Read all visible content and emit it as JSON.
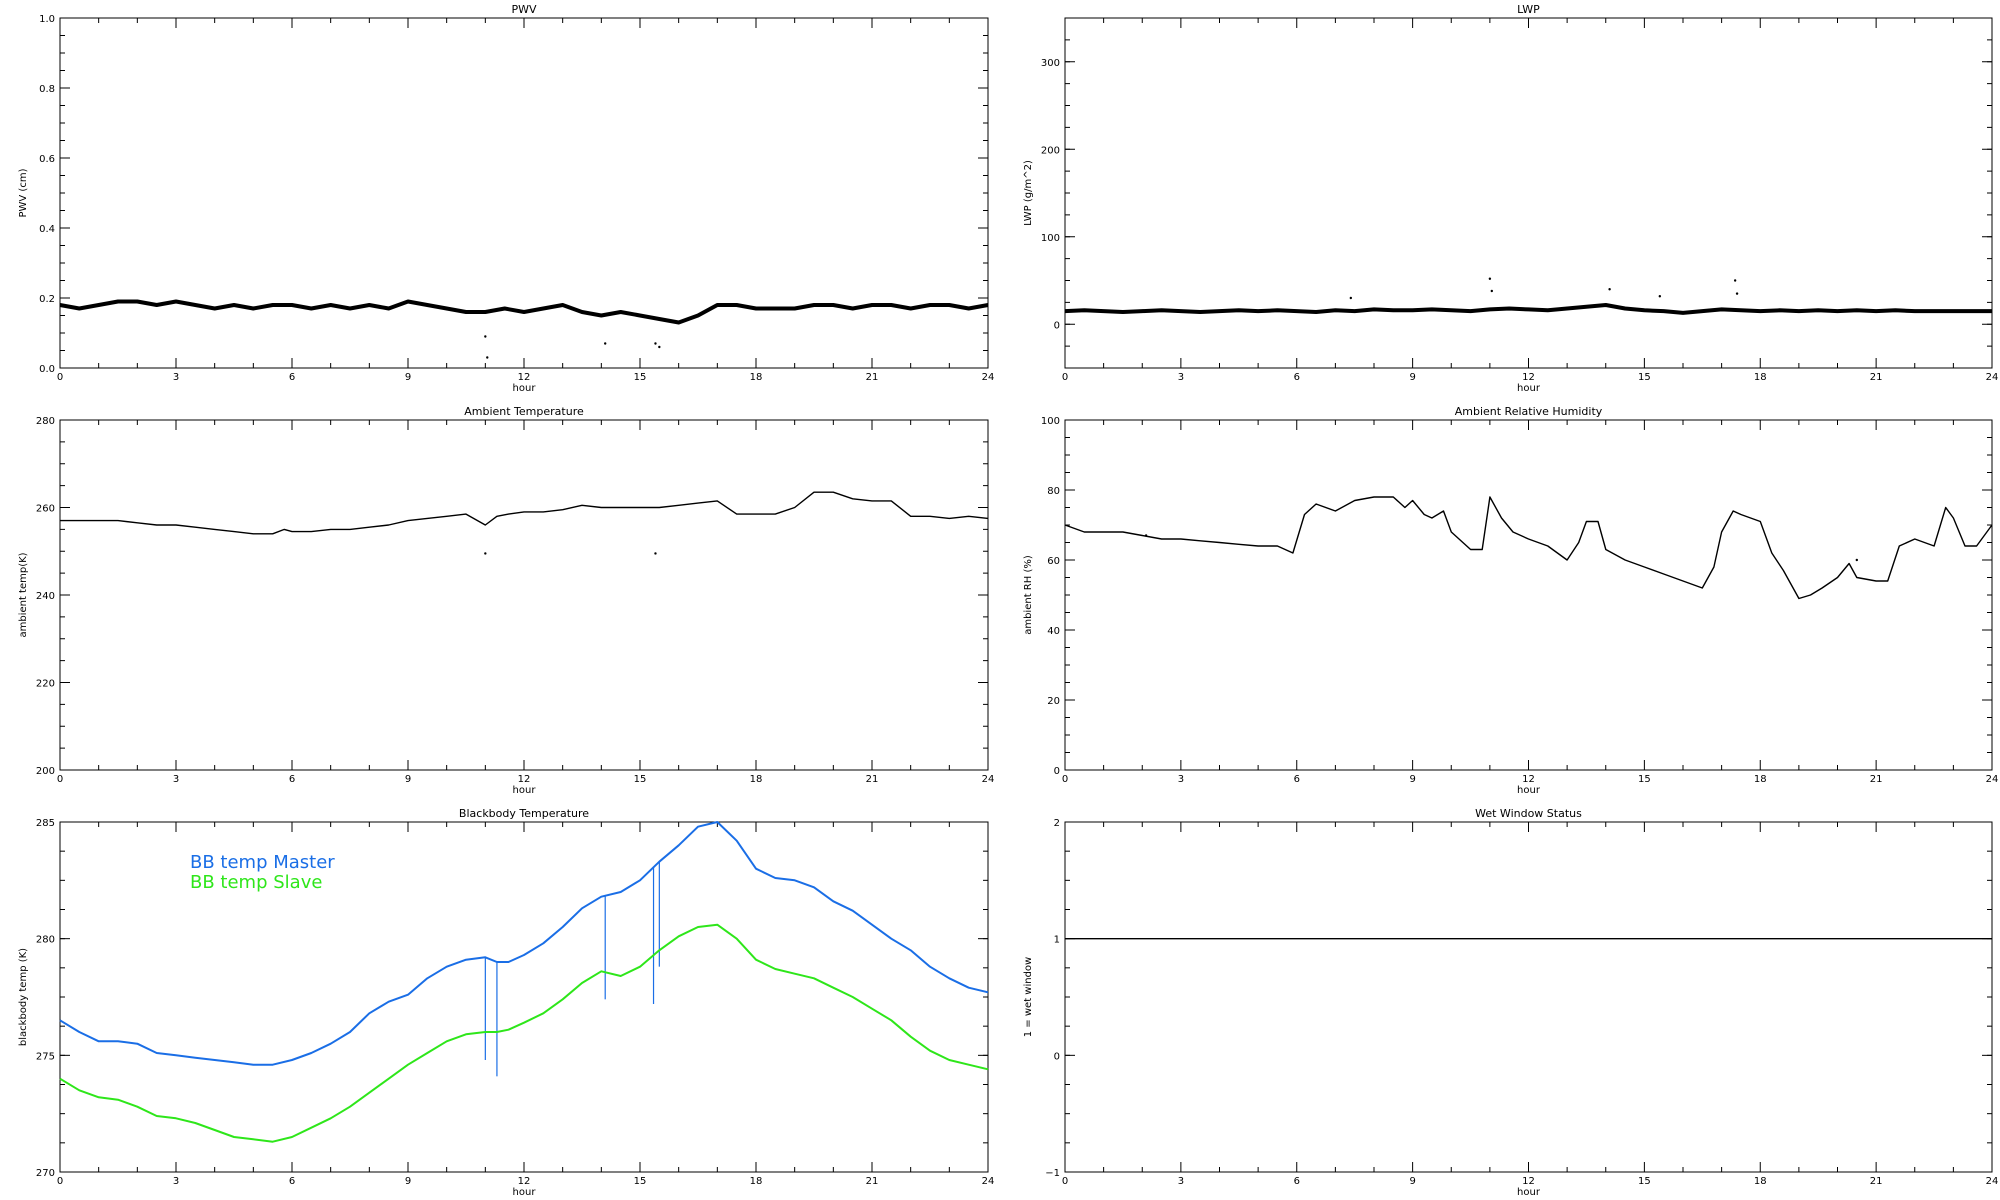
{
  "chart_data": [
    {
      "type": "scatter",
      "title": "PWV",
      "xlabel": "hour",
      "ylabel": "PWV (cm)",
      "xlim": [
        0,
        24
      ],
      "ylim": [
        0,
        1.0
      ],
      "xticks": [
        0,
        3,
        6,
        9,
        12,
        15,
        18,
        21,
        24
      ],
      "yticks": [
        0.0,
        0.2,
        0.4,
        0.6,
        0.8,
        1.0
      ],
      "ytick_labels": [
        "0.0",
        "0.2",
        "0.4",
        "0.6",
        "0.8",
        "1.0"
      ],
      "grid": false,
      "series": [
        {
          "color": "#000000",
          "x": [
            0,
            0.5,
            1,
            1.5,
            2,
            2.5,
            3,
            3.5,
            4,
            4.5,
            5,
            5.5,
            6,
            6.5,
            7,
            7.5,
            8,
            8.5,
            9,
            9.5,
            10,
            10.5,
            11,
            11.5,
            12,
            12.5,
            13,
            13.5,
            14,
            14.5,
            15,
            15.5,
            16,
            16.5,
            17,
            17.5,
            18,
            18.5,
            19,
            19.5,
            20,
            20.5,
            21,
            21.5,
            22,
            22.5,
            23,
            23.5,
            24
          ],
          "y": [
            0.18,
            0.17,
            0.18,
            0.19,
            0.19,
            0.18,
            0.19,
            0.18,
            0.17,
            0.18,
            0.17,
            0.18,
            0.18,
            0.17,
            0.18,
            0.17,
            0.18,
            0.17,
            0.19,
            0.18,
            0.17,
            0.16,
            0.16,
            0.17,
            0.16,
            0.17,
            0.18,
            0.16,
            0.15,
            0.16,
            0.15,
            0.14,
            0.13,
            0.15,
            0.18,
            0.18,
            0.17,
            0.17,
            0.17,
            0.18,
            0.18,
            0.17,
            0.18,
            0.18,
            0.17,
            0.18,
            0.18,
            0.17,
            0.18
          ]
        }
      ],
      "outliers": {
        "x": [
          11.0,
          11.05,
          14.1,
          15.4,
          15.5
        ],
        "y": [
          0.09,
          0.03,
          0.07,
          0.07,
          0.06
        ]
      }
    },
    {
      "type": "scatter",
      "title": "LWP",
      "xlabel": "hour",
      "ylabel": "LWP (g/m^2)",
      "xlim": [
        0,
        24
      ],
      "ylim": [
        -50,
        350
      ],
      "xticks": [
        0,
        3,
        6,
        9,
        12,
        15,
        18,
        21,
        24
      ],
      "yticks": [
        0,
        100,
        200,
        300
      ],
      "ytick_labels": [
        "0",
        "100",
        "200",
        "300"
      ],
      "grid": false,
      "series": [
        {
          "color": "#000000",
          "x": [
            0,
            0.5,
            1,
            1.5,
            2,
            2.5,
            3,
            3.5,
            4,
            4.5,
            5,
            5.5,
            6,
            6.5,
            7,
            7.5,
            8,
            8.5,
            9,
            9.5,
            10,
            10.5,
            11,
            11.5,
            12,
            12.5,
            13,
            13.5,
            14,
            14.5,
            15,
            15.5,
            16,
            16.5,
            17,
            17.5,
            18,
            18.5,
            19,
            19.5,
            20,
            20.5,
            21,
            21.5,
            22,
            22.5,
            23,
            23.5,
            24
          ],
          "y": [
            15,
            16,
            15,
            14,
            15,
            16,
            15,
            14,
            15,
            16,
            15,
            16,
            15,
            14,
            16,
            15,
            17,
            16,
            16,
            17,
            16,
            15,
            17,
            18,
            17,
            16,
            18,
            20,
            22,
            18,
            16,
            15,
            13,
            15,
            17,
            16,
            15,
            16,
            15,
            16,
            15,
            16,
            15,
            16,
            15,
            15,
            15,
            15,
            15
          ]
        }
      ],
      "outliers": {
        "x": [
          7.4,
          11.0,
          11.05,
          14.1,
          15.4,
          17.35,
          17.4
        ],
        "y": [
          30,
          52,
          38,
          40,
          32,
          50,
          35
        ]
      }
    },
    {
      "type": "line",
      "title": "Ambient Temperature",
      "xlabel": "hour",
      "ylabel": "ambient temp(K)",
      "xlim": [
        0,
        24
      ],
      "ylim": [
        200,
        280
      ],
      "xticks": [
        0,
        3,
        6,
        9,
        12,
        15,
        18,
        21,
        24
      ],
      "yticks": [
        200,
        220,
        240,
        260,
        280
      ],
      "ytick_labels": [
        "200",
        "220",
        "240",
        "260",
        "280"
      ],
      "grid": false,
      "series": [
        {
          "color": "#000000",
          "x": [
            0,
            0.5,
            1,
            1.5,
            2,
            2.5,
            3,
            3.5,
            4,
            4.5,
            5,
            5.5,
            5.8,
            6,
            6.5,
            7,
            7.5,
            8,
            8.5,
            9,
            9.5,
            10,
            10.5,
            11,
            11.3,
            11.6,
            12,
            12.5,
            13,
            13.5,
            14,
            14.5,
            15,
            15.5,
            16,
            16.5,
            17,
            17.5,
            18,
            18.5,
            19,
            19.5,
            20,
            20.5,
            21,
            21.5,
            22,
            22.5,
            23,
            23.5,
            24
          ],
          "y": [
            257,
            257,
            257,
            257,
            256.5,
            256,
            256,
            255.5,
            255,
            254.5,
            254,
            254,
            255,
            254.5,
            254.5,
            255,
            255,
            255.5,
            256,
            257,
            257.5,
            258,
            258.5,
            256,
            258,
            258.5,
            259,
            259,
            259.5,
            260.5,
            260,
            260,
            260,
            260,
            260.5,
            261,
            261.5,
            258.5,
            258.5,
            258.5,
            260,
            263.5,
            263.5,
            262,
            261.5,
            261.5,
            258,
            258,
            257.5,
            258,
            257.5
          ]
        }
      ],
      "outliers": {
        "x": [
          11.0,
          15.4
        ],
        "y": [
          249.5,
          249.5
        ]
      }
    },
    {
      "type": "line",
      "title": "Ambient Relative Humidity",
      "xlabel": "hour",
      "ylabel": "ambient RH (%)",
      "xlim": [
        0,
        24
      ],
      "ylim": [
        0,
        100
      ],
      "xticks": [
        0,
        3,
        6,
        9,
        12,
        15,
        18,
        21,
        24
      ],
      "yticks": [
        0,
        20,
        40,
        60,
        80,
        100
      ],
      "ytick_labels": [
        "0",
        "20",
        "40",
        "60",
        "80",
        "100"
      ],
      "grid": false,
      "series": [
        {
          "color": "#000000",
          "x": [
            0,
            0.5,
            1,
            1.5,
            2,
            2.5,
            3,
            3.5,
            4,
            4.5,
            5,
            5.5,
            5.9,
            6.2,
            6.5,
            7,
            7.5,
            8,
            8.5,
            8.8,
            9,
            9.3,
            9.5,
            9.8,
            10,
            10.5,
            10.8,
            11,
            11.3,
            11.6,
            12,
            12.5,
            13,
            13.3,
            13.5,
            13.8,
            14,
            14.5,
            15,
            15.5,
            16,
            16.5,
            16.8,
            17,
            17.3,
            17.5,
            18,
            18.3,
            18.6,
            19,
            19.3,
            19.6,
            20,
            20.3,
            20.5,
            21,
            21.3,
            21.6,
            22,
            22.5,
            22.8,
            23,
            23.3,
            23.6,
            24
          ],
          "y": [
            70,
            68,
            68,
            68,
            67,
            66,
            66,
            65.5,
            65,
            64.5,
            64,
            64,
            62,
            73,
            76,
            74,
            77,
            78,
            78,
            75,
            77,
            73,
            72,
            74,
            68,
            63,
            63,
            78,
            72,
            68,
            66,
            64,
            60,
            65,
            71,
            71,
            63,
            60,
            58,
            56,
            54,
            52,
            58,
            68,
            74,
            73,
            71,
            62,
            57,
            49,
            50,
            52,
            55,
            59,
            55,
            54,
            54,
            64,
            66,
            64,
            75,
            72,
            64,
            64,
            70
          ]
        }
      ],
      "outliers": {
        "x": [
          2.1,
          20.5
        ],
        "y": [
          67,
          60
        ]
      }
    },
    {
      "type": "line",
      "title": "Blackbody Temperature",
      "xlabel": "hour",
      "ylabel": "blackbody temp (K)",
      "xlim": [
        0,
        24
      ],
      "ylim": [
        270,
        285
      ],
      "xticks": [
        0,
        3,
        6,
        9,
        12,
        15,
        18,
        21,
        24
      ],
      "yticks": [
        270,
        275,
        280,
        285
      ],
      "ytick_labels": [
        "270",
        "275",
        "280",
        "285"
      ],
      "grid": false,
      "legend": [
        "BB temp Master",
        "BB temp Slave"
      ],
      "series": [
        {
          "name": "BB temp Master",
          "color": "#1a6ee6",
          "x": [
            0,
            0.5,
            1,
            1.5,
            2,
            2.5,
            3,
            3.5,
            4,
            4.5,
            5,
            5.5,
            6,
            6.5,
            7,
            7.5,
            8,
            8.5,
            9,
            9.5,
            10,
            10.5,
            11,
            11.3,
            11.6,
            12,
            12.5,
            13,
            13.5,
            14,
            14.5,
            15,
            15.5,
            16,
            16.5,
            17,
            17.5,
            18,
            18.5,
            19,
            19.5,
            20,
            20.5,
            21,
            21.5,
            22,
            22.5,
            23,
            23.5,
            24
          ],
          "y": [
            276.5,
            276.0,
            275.6,
            275.6,
            275.5,
            275.1,
            275.0,
            274.9,
            274.8,
            274.7,
            274.6,
            274.6,
            274.8,
            275.1,
            275.5,
            276.0,
            276.8,
            277.3,
            277.6,
            278.3,
            278.8,
            279.1,
            279.2,
            279.0,
            279.0,
            279.3,
            279.8,
            280.5,
            281.3,
            281.8,
            282.0,
            282.5,
            283.3,
            284.0,
            284.8,
            285.0,
            284.2,
            283.0,
            282.6,
            282.5,
            282.2,
            281.6,
            281.2,
            280.6,
            280.0,
            279.5,
            278.8,
            278.3,
            277.9,
            277.7
          ],
          "spikes": [
            {
              "x": 11.0,
              "y": 274.8
            },
            {
              "x": 11.3,
              "y": 274.1
            },
            {
              "x": 14.1,
              "y": 277.4
            },
            {
              "x": 15.35,
              "y": 277.2
            },
            {
              "x": 15.5,
              "y": 278.8
            }
          ]
        },
        {
          "name": "BB temp Slave",
          "color": "#2ee61a",
          "x": [
            0,
            0.5,
            1,
            1.5,
            2,
            2.5,
            3,
            3.5,
            4,
            4.5,
            5,
            5.5,
            6,
            6.5,
            7,
            7.5,
            8,
            8.5,
            9,
            9.5,
            10,
            10.5,
            11,
            11.3,
            11.6,
            12,
            12.5,
            13,
            13.5,
            14,
            14.5,
            15,
            15.5,
            16,
            16.5,
            17,
            17.5,
            18,
            18.5,
            19,
            19.5,
            20,
            20.5,
            21,
            21.5,
            22,
            22.5,
            23,
            23.5,
            24
          ],
          "y": [
            274.0,
            273.5,
            273.2,
            273.1,
            272.8,
            272.4,
            272.3,
            272.1,
            271.8,
            271.5,
            271.4,
            271.3,
            271.5,
            271.9,
            272.3,
            272.8,
            273.4,
            274.0,
            274.6,
            275.1,
            275.6,
            275.9,
            276.0,
            276.0,
            276.1,
            276.4,
            276.8,
            277.4,
            278.1,
            278.6,
            278.4,
            278.8,
            279.5,
            280.1,
            280.5,
            280.6,
            280.0,
            279.1,
            278.7,
            278.5,
            278.3,
            277.9,
            277.5,
            277.0,
            276.5,
            275.8,
            275.2,
            274.8,
            274.6,
            274.4
          ]
        }
      ]
    },
    {
      "type": "line",
      "title": "Wet Window Status",
      "xlabel": "hour",
      "ylabel": "1 = wet window",
      "xlim": [
        0,
        24
      ],
      "ylim": [
        -1,
        2
      ],
      "xticks": [
        0,
        3,
        6,
        9,
        12,
        15,
        18,
        21,
        24
      ],
      "yticks": [
        -1,
        0,
        1,
        2
      ],
      "ytick_labels": [
        "−1",
        "0",
        "1",
        "2"
      ],
      "grid": false,
      "series": [
        {
          "color": "#000000",
          "x": [
            0,
            24
          ],
          "y": [
            1,
            1
          ]
        }
      ]
    }
  ]
}
